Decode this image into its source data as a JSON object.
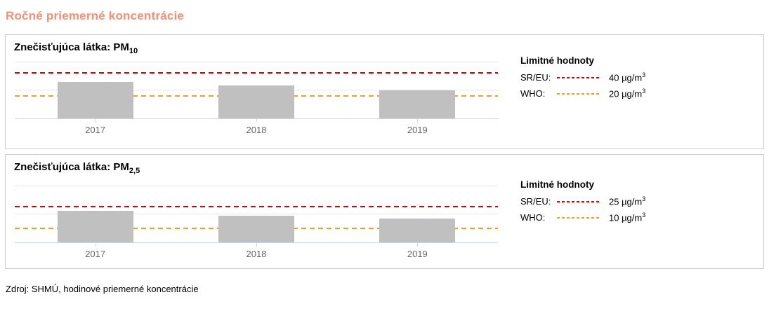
{
  "page_title": "Ročné priemerné koncentrácie",
  "footer": "Zdroj: SHMÚ, hodinové priemerné koncentrácie",
  "legend_title": "Limitné hodnoty",
  "colors": {
    "accent": "#f78e72",
    "sr_eu_line": "#e00000",
    "who_line": "#f0a30a",
    "bar": "#c0c0c0",
    "gridline": "#e6e6e6",
    "axis": "#ccd6eb",
    "tick_label": "#666666"
  },
  "chart_data": [
    {
      "type": "bar",
      "title": "Znečisťujúca látka: PM10",
      "title_prefix": "Znečisťujúca látka: PM",
      "title_sub": "10",
      "categories": [
        "2017",
        "2018",
        "2019"
      ],
      "values": [
        32,
        29,
        25
      ],
      "unit": "µg/m³",
      "xlabel": "",
      "ylabel": "",
      "ylim": [
        0,
        50
      ],
      "gridline_step": 25,
      "grid": "on",
      "legend_position": "right",
      "limits": [
        {
          "label": "SR/EU:",
          "value": 40,
          "value_text": "40 µg/m",
          "value_sup": "3",
          "color": "#e00000"
        },
        {
          "label": "WHO:",
          "value": 20,
          "value_text": "20 µg/m",
          "value_sup": "3",
          "color": "#f0a30a"
        }
      ]
    },
    {
      "type": "bar",
      "title": "Znečisťujúca látka: PM2,5",
      "title_prefix": "Znečisťujúca látka: PM",
      "title_sub": "2,5",
      "categories": [
        "2017",
        "2018",
        "2019"
      ],
      "values": [
        22,
        19,
        17
      ],
      "unit": "µg/m³",
      "xlabel": "",
      "ylabel": "",
      "ylim": [
        0,
        40
      ],
      "gridline_step": 20,
      "grid": "on",
      "legend_position": "right",
      "limits": [
        {
          "label": "SR/EU:",
          "value": 25,
          "value_text": "25 µg/m",
          "value_sup": "3",
          "color": "#e00000"
        },
        {
          "label": "WHO:",
          "value": 10,
          "value_text": "10 µg/m",
          "value_sup": "3",
          "color": "#f0a30a"
        }
      ]
    }
  ]
}
